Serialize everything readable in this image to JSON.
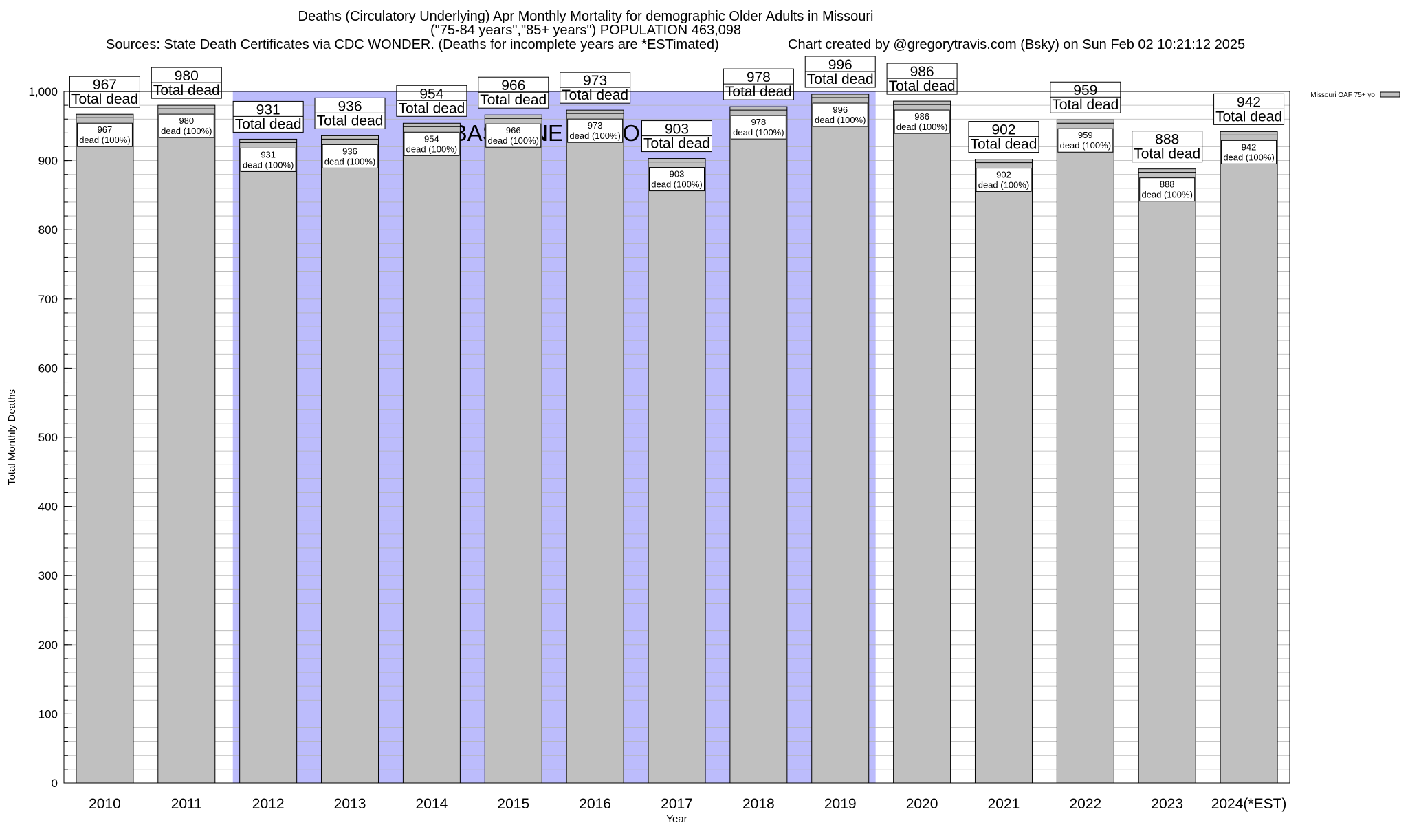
{
  "chart_data": {
    "type": "bar",
    "title": "Deaths (Circulatory Underlying) Apr Monthly Mortality for demographic Older Adults in Missouri",
    "subtitle": "(\"75-84 years\",\"85+ years\") POPULATION 463,098",
    "sources": "Sources: State Death Certificates via CDC WONDER. (Deaths for incomplete years are *ESTimated)",
    "credit": "Chart created by @gregorytravis.com (Bsky) on Sun Feb 02 10:21:12 2025",
    "xlabel": "Year",
    "ylabel": "Total Monthly Deaths",
    "ylim": [
      0,
      1000
    ],
    "yticks": [
      0,
      100,
      200,
      300,
      400,
      500,
      600,
      700,
      800,
      900,
      1000
    ],
    "ytick_labels": [
      "0",
      "100",
      "200",
      "300",
      "400",
      "500",
      "600",
      "700",
      "800",
      "900",
      "1,000"
    ],
    "grid": true,
    "categories": [
      "2010",
      "2011",
      "2012",
      "2013",
      "2014",
      "2015",
      "2016",
      "2017",
      "2018",
      "2019",
      "2020",
      "2021",
      "2022",
      "2023",
      "2024(*EST)"
    ],
    "series": [
      {
        "name": "Missouri OAF 75+ yo",
        "values": [
          967,
          980,
          931,
          936,
          954,
          966,
          973,
          903,
          978,
          996,
          986,
          902,
          959,
          888,
          942
        ]
      }
    ],
    "total_labels": [
      "967",
      "980",
      "931",
      "936",
      "954",
      "966",
      "973",
      "903",
      "978",
      "996",
      "986",
      "902",
      "959",
      "888",
      "942"
    ],
    "total_suffix": "Total dead",
    "inner_labels": [
      "967",
      "980",
      "931",
      "936",
      "954",
      "966",
      "973",
      "903",
      "978",
      "996",
      "986",
      "902",
      "959",
      "888",
      "942"
    ],
    "inner_suffix": "dead (100%)",
    "baseline": {
      "label": "BASELINE PERIOD",
      "start": "2012",
      "end": "2019",
      "color": "#bcbcfc"
    },
    "bar_color": "#c0c0c0",
    "legend": {
      "label": "Missouri OAF 75+ yo",
      "placement": "top-right"
    }
  }
}
